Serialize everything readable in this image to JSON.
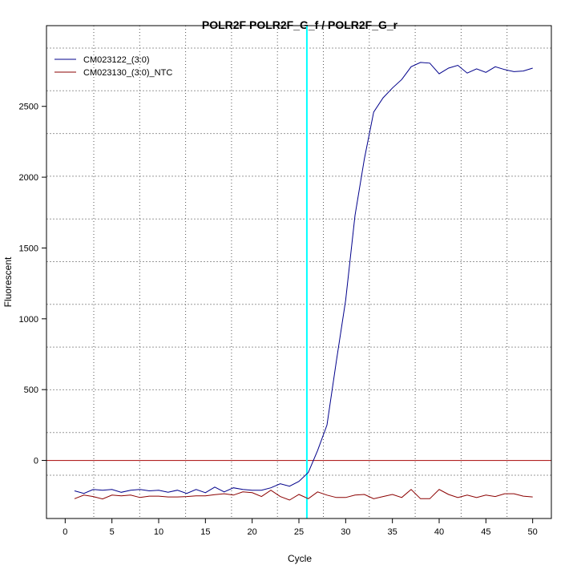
{
  "chart_data": {
    "type": "line",
    "title": "POLR2F  POLR2F_G_f / POLR2F_G_r",
    "xlabel": "Cycle",
    "ylabel": "Fluorescent",
    "xlim": [
      -2,
      52
    ],
    "ylim": [
      -410,
      3070
    ],
    "xticks": [
      0,
      5,
      10,
      15,
      20,
      25,
      30,
      35,
      40,
      45,
      50
    ],
    "yticks": [
      0,
      500,
      1000,
      1500,
      2000,
      2500
    ],
    "threshold": 0,
    "threshold_color": "#b22222",
    "cycle_marker": 25.85,
    "cycle_marker_color": "#00ffff",
    "legend_position": "top-left",
    "x": [
      1,
      2,
      3,
      4,
      5,
      6,
      7,
      8,
      9,
      10,
      11,
      12,
      13,
      14,
      15,
      16,
      17,
      18,
      19,
      20,
      21,
      22,
      23,
      24,
      25,
      26,
      27,
      28,
      29,
      30,
      31,
      32,
      33,
      34,
      35,
      36,
      37,
      38,
      39,
      40,
      41,
      42,
      43,
      44,
      45,
      46,
      47,
      48,
      49,
      50
    ],
    "series": [
      {
        "name": "CM023122_(3:0)",
        "color": "#00008b",
        "values": [
          -215,
          -233,
          -205,
          -210,
          -205,
          -225,
          -210,
          -205,
          -215,
          -210,
          -225,
          -210,
          -233,
          -205,
          -228,
          -188,
          -222,
          -193,
          -205,
          -210,
          -210,
          -193,
          -165,
          -182,
          -148,
          -85,
          70,
          250,
          700,
          1130,
          1730,
          2130,
          2460,
          2560,
          2630,
          2690,
          2780,
          2810,
          2805,
          2730,
          2770,
          2790,
          2735,
          2765,
          2740,
          2780,
          2760,
          2745,
          2750,
          2770
        ]
      },
      {
        "name": "CM023130_(3:0)_NTC",
        "color": "#8b0000",
        "values": [
          -270,
          -245,
          -255,
          -272,
          -245,
          -250,
          -245,
          -262,
          -252,
          -252,
          -258,
          -258,
          -255,
          -250,
          -250,
          -242,
          -235,
          -245,
          -222,
          -228,
          -255,
          -210,
          -255,
          -280,
          -240,
          -270,
          -222,
          -245,
          -262,
          -262,
          -245,
          -240,
          -270,
          -255,
          -240,
          -262,
          -205,
          -270,
          -270,
          -205,
          -240,
          -262,
          -245,
          -262,
          -245,
          -255,
          -235,
          -235,
          -252,
          -258
        ]
      }
    ]
  }
}
